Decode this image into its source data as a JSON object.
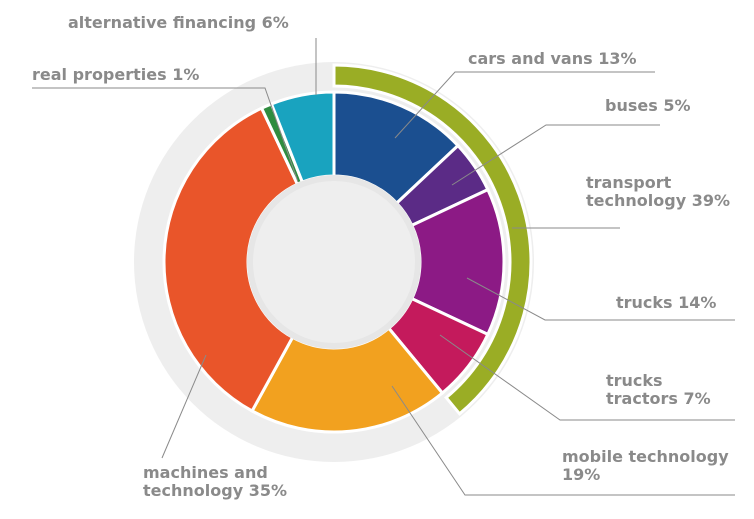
{
  "chart_data": {
    "type": "donut",
    "categories": [
      "cars and vans",
      "buses",
      "trucks",
      "trucks tractors",
      "mobile technology",
      "machines and technology",
      "real properties",
      "alternative financing"
    ],
    "values": [
      13,
      5,
      14,
      7,
      19,
      35,
      1,
      6
    ],
    "value_labels": [
      "13%",
      "5%",
      "14%",
      "7%",
      "19%",
      "35%",
      "1%",
      "6%"
    ],
    "colors": [
      "#1b4f90",
      "#5b2b86",
      "#8c1a85",
      "#c41a5c",
      "#f2a11f",
      "#e9552a",
      "#2f8c3f",
      "#19a3bf"
    ],
    "outer_ring": {
      "name": "transport technology",
      "value": 39,
      "value_label": "39%",
      "color": "#9aad25"
    }
  }
}
